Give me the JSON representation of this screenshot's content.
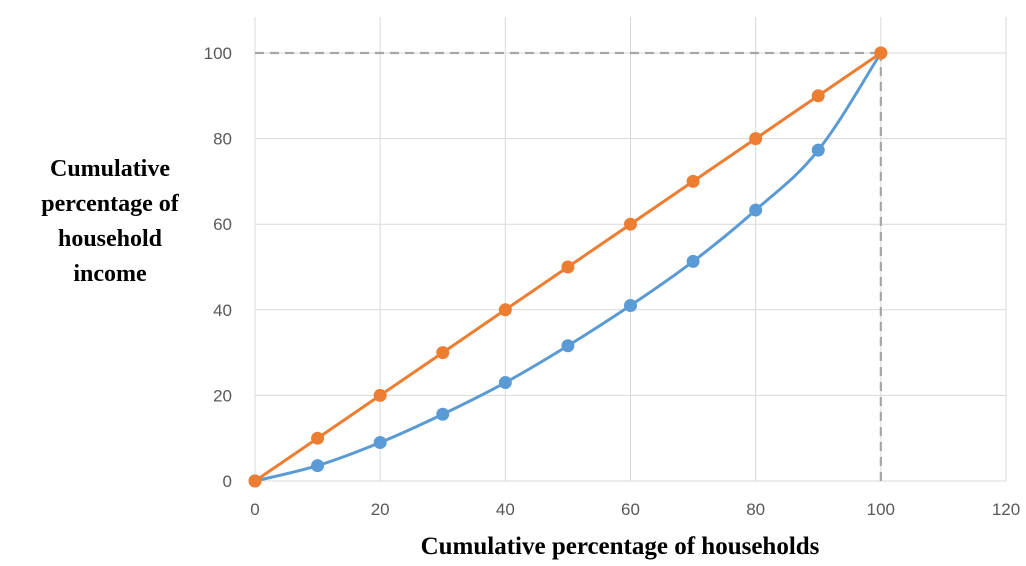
{
  "chart_data": {
    "type": "line",
    "title": "",
    "xlabel": "Cumulative percentage of households",
    "ylabel_lines": [
      "Cumulative",
      "percentage of",
      "household",
      "income"
    ],
    "xlim": [
      0,
      120
    ],
    "ylim": [
      0,
      100
    ],
    "xticks": [
      0,
      20,
      40,
      60,
      80,
      100,
      120
    ],
    "yticks": [
      0,
      20,
      40,
      60,
      80,
      100
    ],
    "grid": true,
    "legend": "none",
    "reference_lines": [
      {
        "orientation": "horizontal",
        "value": 100,
        "from": 0,
        "to": 100,
        "style": "dashed",
        "color": "#a6a6a6"
      },
      {
        "orientation": "vertical",
        "value": 100,
        "from": 0,
        "to": 100,
        "style": "dashed",
        "color": "#a6a6a6"
      }
    ],
    "series": [
      {
        "color": "#ed7d31",
        "smooth": false,
        "x": [
          0,
          10,
          20,
          30,
          40,
          50,
          60,
          70,
          80,
          90,
          100
        ],
        "y": [
          0,
          10,
          20,
          30,
          40,
          50,
          60,
          70,
          80,
          90,
          100
        ]
      },
      {
        "color": "#5b9bd5",
        "smooth": true,
        "x": [
          0,
          10,
          20,
          30,
          40,
          50,
          60,
          70,
          80,
          90,
          100
        ],
        "y": [
          0,
          3.6,
          9,
          15.6,
          23,
          31.6,
          41,
          51.3,
          63.3,
          77.3,
          100
        ]
      }
    ]
  }
}
